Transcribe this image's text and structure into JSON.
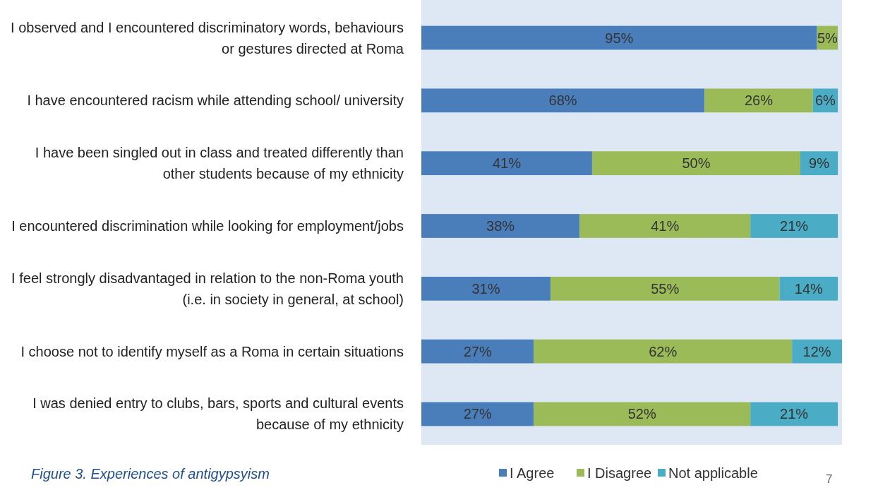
{
  "chart_data": {
    "type": "bar",
    "orientation": "horizontal",
    "stacked": true,
    "title": "Figure 3. Experiences of antigypsyism",
    "categories": [
      "I observed and I encountered discriminatory words, behaviours or gestures directed at Roma",
      "I have encountered racism while attending school/ university",
      "I have been singled out in class and treated differently than other students because of my ethnicity",
      "I encountered discrimination while looking for employment/jobs",
      "I feel strongly disadvantaged in relation to the non-Roma youth (i.e. in society in general, at school)",
      "I choose not to identify myself as a Roma in certain situations",
      "I was denied entry to clubs, bars, sports and cultural events because of my ethnicity"
    ],
    "series": [
      {
        "name": "I Agree",
        "color": "#4a7ebb",
        "values": [
          95,
          68,
          41,
          38,
          31,
          27,
          27
        ],
        "value_labels": [
          "95%",
          "68%",
          "41%",
          "38%",
          "31%",
          "27%",
          "27%"
        ]
      },
      {
        "name": "I Disagree",
        "color": "#9bbb59",
        "values": [
          5,
          26,
          50,
          41,
          55,
          62,
          52
        ],
        "value_labels": [
          "5%",
          "26%",
          "50%",
          "41%",
          "55%",
          "62%",
          "52%"
        ]
      },
      {
        "name": "Not applicable",
        "color": "#4bacc6",
        "values": [
          null,
          6,
          9,
          21,
          14,
          12,
          21
        ],
        "value_labels": [
          null,
          "6%",
          "9%",
          "21%",
          "14%",
          "12%",
          "21%"
        ]
      }
    ],
    "legend": "bottom",
    "annotations": [
      "7"
    ]
  }
}
